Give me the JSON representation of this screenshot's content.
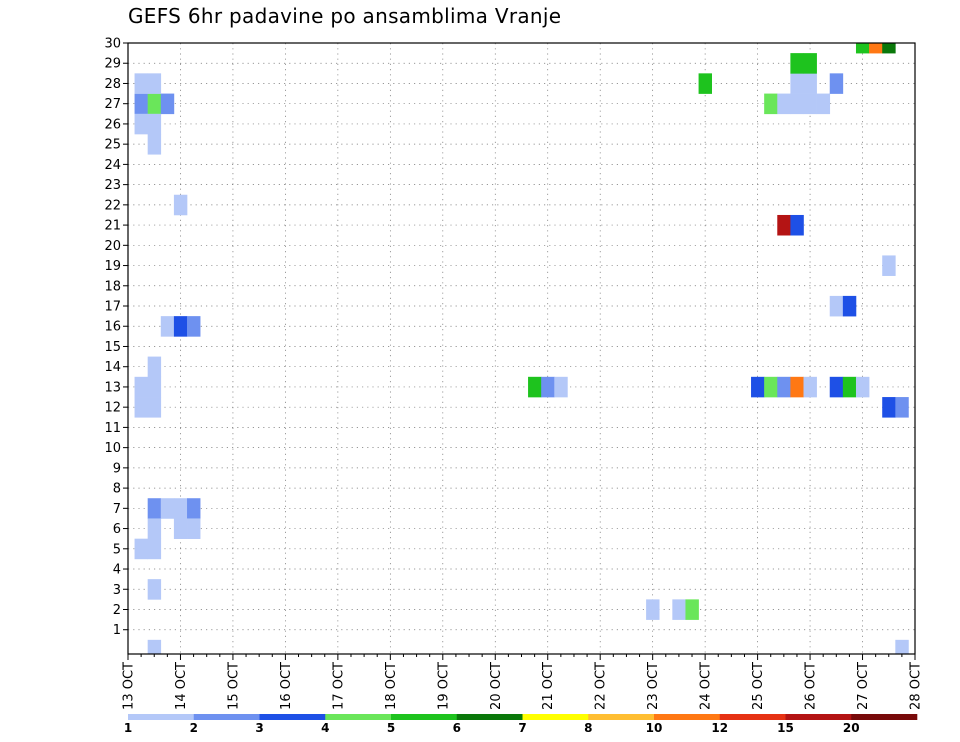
{
  "chart_data": {
    "type": "heatmap",
    "title": "GEFS 6hr padavine po ansamblima Vranje",
    "xlabel": "",
    "ylabel": "",
    "x_ticks": [
      "13 OCT",
      "14 OCT",
      "15 OCT",
      "16 OCT",
      "17 OCT",
      "18 OCT",
      "19 OCT",
      "20 OCT",
      "21 OCT",
      "22 OCT",
      "23 OCT",
      "24 OCT",
      "25 OCT",
      "26 OCT",
      "27 OCT",
      "28 OCT"
    ],
    "y_ticks": [
      1,
      2,
      3,
      4,
      5,
      6,
      7,
      8,
      9,
      10,
      11,
      12,
      13,
      14,
      15,
      16,
      17,
      18,
      19,
      20,
      21,
      22,
      23,
      24,
      25,
      26,
      27,
      28,
      29,
      30
    ],
    "x_unit": "6-hour step since 13 OCT 00Z",
    "ylim": [
      0,
      30
    ],
    "grid": true,
    "legend": {
      "placement": "bottom",
      "labels": [
        "1",
        "2",
        "3",
        "4",
        "5",
        "6",
        "7",
        "8",
        "10",
        "12",
        "15",
        "20"
      ],
      "colors": [
        "#b4c8f8",
        "#6e91f0",
        "#1e50e6",
        "#6ae65a",
        "#1ec31e",
        "#0a780a",
        "#ffff00",
        "#ffbe32",
        "#ff7814",
        "#e63214",
        "#b41414",
        "#780a0a"
      ]
    },
    "cells": [
      {
        "x": 1,
        "y": 27,
        "v": 2
      },
      {
        "x": 2,
        "y": 27,
        "v": 4
      },
      {
        "x": 3,
        "y": 27,
        "v": 2
      },
      {
        "x": 1,
        "y": 28,
        "v": 1
      },
      {
        "x": 2,
        "y": 28,
        "v": 1
      },
      {
        "x": 1,
        "y": 26,
        "v": 1
      },
      {
        "x": 2,
        "y": 26,
        "v": 1
      },
      {
        "x": 2,
        "y": 25,
        "v": 1
      },
      {
        "x": 4,
        "y": 22,
        "v": 1
      },
      {
        "x": 3,
        "y": 16,
        "v": 1
      },
      {
        "x": 4,
        "y": 16,
        "v": 3
      },
      {
        "x": 5,
        "y": 16,
        "v": 2
      },
      {
        "x": 1,
        "y": 12,
        "v": 1
      },
      {
        "x": 2,
        "y": 12,
        "v": 1
      },
      {
        "x": 1,
        "y": 13,
        "v": 1
      },
      {
        "x": 2,
        "y": 13,
        "v": 1
      },
      {
        "x": 2,
        "y": 14,
        "v": 1
      },
      {
        "x": 2,
        "y": 7,
        "v": 2
      },
      {
        "x": 3,
        "y": 7,
        "v": 1
      },
      {
        "x": 4,
        "y": 7,
        "v": 1
      },
      {
        "x": 5,
        "y": 7,
        "v": 2
      },
      {
        "x": 2,
        "y": 6,
        "v": 1
      },
      {
        "x": 4,
        "y": 6,
        "v": 1
      },
      {
        "x": 5,
        "y": 6,
        "v": 1
      },
      {
        "x": 1,
        "y": 5,
        "v": 1
      },
      {
        "x": 2,
        "y": 5,
        "v": 1
      },
      {
        "x": 2,
        "y": 3,
        "v": 1
      },
      {
        "x": 2,
        "y": 0,
        "v": 1
      },
      {
        "x": 31,
        "y": 13,
        "v": 5
      },
      {
        "x": 32,
        "y": 13,
        "v": 2
      },
      {
        "x": 33,
        "y": 13,
        "v": 1
      },
      {
        "x": 40,
        "y": 2,
        "v": 1
      },
      {
        "x": 42,
        "y": 2,
        "v": 1
      },
      {
        "x": 43,
        "y": 2,
        "v": 4
      },
      {
        "x": 44,
        "y": 28,
        "v": 5
      },
      {
        "x": 48,
        "y": 13,
        "v": 3
      },
      {
        "x": 49,
        "y": 13,
        "v": 4
      },
      {
        "x": 50,
        "y": 13,
        "v": 2
      },
      {
        "x": 51,
        "y": 13,
        "v": 10
      },
      {
        "x": 52,
        "y": 13,
        "v": 1
      },
      {
        "x": 49,
        "y": 27,
        "v": 4
      },
      {
        "x": 50,
        "y": 27,
        "v": 1
      },
      {
        "x": 51,
        "y": 27,
        "v": 1
      },
      {
        "x": 52,
        "y": 27,
        "v": 1
      },
      {
        "x": 53,
        "y": 27,
        "v": 1
      },
      {
        "x": 51,
        "y": 28,
        "v": 1
      },
      {
        "x": 52,
        "y": 28,
        "v": 1
      },
      {
        "x": 54,
        "y": 28,
        "v": 2
      },
      {
        "x": 51,
        "y": 29,
        "v": 5
      },
      {
        "x": 52,
        "y": 29,
        "v": 5
      },
      {
        "x": 50,
        "y": 21,
        "v": 15
      },
      {
        "x": 51,
        "y": 21,
        "v": 3
      },
      {
        "x": 54,
        "y": 13,
        "v": 3
      },
      {
        "x": 55,
        "y": 13,
        "v": 5
      },
      {
        "x": 56,
        "y": 13,
        "v": 1
      },
      {
        "x": 54,
        "y": 17,
        "v": 1
      },
      {
        "x": 55,
        "y": 17,
        "v": 3
      },
      {
        "x": 58,
        "y": 12,
        "v": 3
      },
      {
        "x": 59,
        "y": 12,
        "v": 2
      },
      {
        "x": 58,
        "y": 19,
        "v": 1
      },
      {
        "x": 56,
        "y": 30,
        "v": 5
      },
      {
        "x": 57,
        "y": 30,
        "v": 10
      },
      {
        "x": 58,
        "y": 30,
        "v": 6
      },
      {
        "x": 59,
        "y": 0,
        "v": 1
      }
    ]
  }
}
